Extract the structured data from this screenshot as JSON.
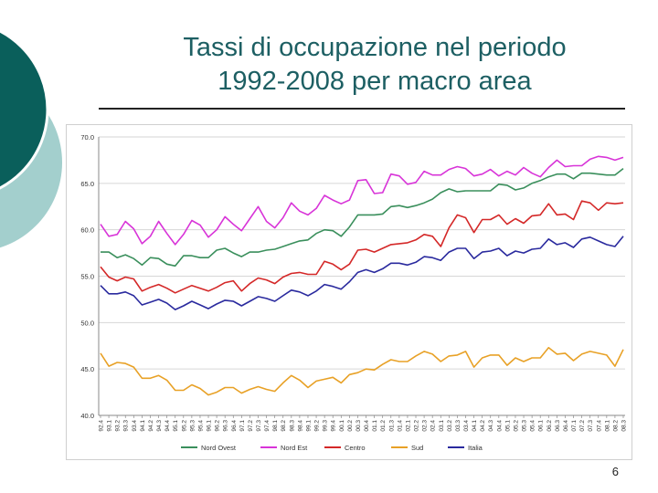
{
  "slide": {
    "title_line1": "Tassi di occupazione nel periodo",
    "title_line2": "1992-2008 per macro area",
    "page_number": "6",
    "colors": {
      "title": "#1d5f63",
      "deco_dark": "#0a5f5b",
      "deco_light": "#a3cfcd"
    }
  },
  "chart_data": {
    "type": "line",
    "title": "",
    "xlabel": "",
    "ylabel": "",
    "ylim": [
      40.0,
      70.0
    ],
    "yticks": [
      "40.0",
      "45.0",
      "50.0",
      "55.0",
      "60.0",
      "65.0",
      "70.0"
    ],
    "grid": true,
    "legend_position": "bottom",
    "x": [
      "92.4",
      "93.1",
      "93.2",
      "93.3",
      "93.4",
      "94.1",
      "94.2",
      "94.3",
      "94.4",
      "95.1",
      "95.2",
      "95.3",
      "95.4",
      "96.1",
      "96.2",
      "96.3",
      "96.4",
      "97.1",
      "97.2",
      "97.3",
      "97.4",
      "98.1",
      "98.2",
      "98.3",
      "98.4",
      "99.1",
      "99.2",
      "99.3",
      "99.4",
      "00.1",
      "00.2",
      "00.3",
      "00.4",
      "01.1",
      "01.2",
      "01.3",
      "01.4",
      "02.1",
      "02.2",
      "02.3",
      "02.4",
      "03.1",
      "03.2",
      "03.3",
      "03.4",
      "04.1",
      "04.2",
      "04.3",
      "04.4",
      "05.1",
      "05.2",
      "05.3",
      "05.4",
      "06.1",
      "06.2",
      "06.3",
      "06.4",
      "07.1",
      "07.2",
      "07.3",
      "07.4",
      "08.1",
      "08.2",
      "08.3"
    ],
    "series": [
      {
        "name": "Nord Ovest",
        "color": "#3a8f5c",
        "values": [
          57.6,
          57.6,
          57.0,
          57.3,
          56.9,
          56.2,
          57.0,
          56.9,
          56.3,
          56.1,
          57.2,
          57.2,
          57.0,
          57.0,
          57.8,
          58.0,
          57.5,
          57.1,
          57.6,
          57.6,
          57.8,
          57.9,
          58.2,
          58.5,
          58.8,
          58.9,
          59.6,
          60.0,
          59.9,
          59.3,
          60.3,
          61.6,
          61.6,
          61.6,
          61.7,
          62.5,
          62.6,
          62.4,
          62.6,
          62.9,
          63.3,
          64.0,
          64.4,
          64.1,
          64.2,
          64.2,
          64.2,
          64.2,
          64.9,
          64.8,
          64.3,
          64.5,
          65.0,
          65.3,
          65.7,
          66.0,
          66.0,
          65.5,
          66.1,
          66.1,
          66.0,
          65.9,
          65.9,
          66.6
        ]
      },
      {
        "name": "Nord Est",
        "color": "#d834d8",
        "values": [
          60.6,
          59.3,
          59.5,
          60.9,
          60.1,
          58.5,
          59.3,
          60.9,
          59.6,
          58.4,
          59.5,
          61.0,
          60.5,
          59.2,
          60.0,
          61.4,
          60.6,
          59.9,
          61.2,
          62.5,
          60.9,
          60.2,
          61.3,
          62.9,
          62.0,
          61.6,
          62.3,
          63.7,
          63.2,
          62.8,
          63.2,
          65.3,
          65.4,
          63.9,
          64.0,
          66.0,
          65.8,
          64.9,
          65.1,
          66.3,
          65.9,
          65.9,
          66.5,
          66.8,
          66.6,
          65.8,
          66.0,
          66.5,
          65.8,
          66.3,
          65.9,
          66.7,
          66.1,
          65.7,
          66.7,
          67.5,
          66.8,
          66.9,
          66.9,
          67.6,
          67.9,
          67.8,
          67.5,
          67.8
        ]
      },
      {
        "name": "Centro",
        "color": "#d42828",
        "values": [
          56.0,
          54.9,
          54.5,
          54.9,
          54.7,
          53.4,
          53.8,
          54.1,
          53.7,
          53.2,
          53.6,
          54.0,
          53.7,
          53.4,
          53.8,
          54.3,
          54.5,
          53.4,
          54.2,
          54.8,
          54.6,
          54.2,
          54.9,
          55.3,
          55.4,
          55.2,
          55.2,
          56.6,
          56.3,
          55.7,
          56.3,
          57.8,
          57.9,
          57.6,
          58.0,
          58.4,
          58.5,
          58.6,
          58.9,
          59.5,
          59.3,
          58.2,
          60.2,
          61.6,
          61.3,
          59.7,
          61.1,
          61.1,
          61.6,
          60.6,
          61.2,
          60.7,
          61.5,
          61.6,
          62.8,
          61.6,
          61.7,
          61.1,
          63.1,
          62.9,
          62.1,
          62.9,
          62.8,
          62.9
        ]
      },
      {
        "name": "Sud",
        "color": "#e8a126",
        "values": [
          46.7,
          45.3,
          45.7,
          45.6,
          45.2,
          44.0,
          44.0,
          44.3,
          43.8,
          42.7,
          42.7,
          43.3,
          42.9,
          42.2,
          42.5,
          43.0,
          43.0,
          42.4,
          42.8,
          43.1,
          42.8,
          42.6,
          43.5,
          44.3,
          43.8,
          43.0,
          43.7,
          43.9,
          44.1,
          43.5,
          44.4,
          44.6,
          45.0,
          44.9,
          45.5,
          46.0,
          45.8,
          45.8,
          46.4,
          46.9,
          46.6,
          45.8,
          46.4,
          46.5,
          46.9,
          45.2,
          46.2,
          46.5,
          46.5,
          45.4,
          46.2,
          45.8,
          46.2,
          46.2,
          47.3,
          46.6,
          46.7,
          45.9,
          46.6,
          46.9,
          46.7,
          46.5,
          45.3,
          47.1
        ]
      },
      {
        "name": "Italia",
        "color": "#2a2a9e",
        "values": [
          54.0,
          53.1,
          53.1,
          53.3,
          52.9,
          51.9,
          52.2,
          52.5,
          52.1,
          51.4,
          51.8,
          52.3,
          51.9,
          51.5,
          52.0,
          52.4,
          52.3,
          51.8,
          52.3,
          52.8,
          52.6,
          52.3,
          52.9,
          53.5,
          53.3,
          52.9,
          53.4,
          54.1,
          53.9,
          53.6,
          54.4,
          55.4,
          55.7,
          55.4,
          55.8,
          56.4,
          56.4,
          56.2,
          56.5,
          57.1,
          57.0,
          56.7,
          57.6,
          58.0,
          58.0,
          56.9,
          57.6,
          57.7,
          58.0,
          57.2,
          57.7,
          57.5,
          57.9,
          58.0,
          59.0,
          58.4,
          58.6,
          58.1,
          59.0,
          59.2,
          58.8,
          58.4,
          58.2,
          59.3
        ]
      }
    ]
  }
}
